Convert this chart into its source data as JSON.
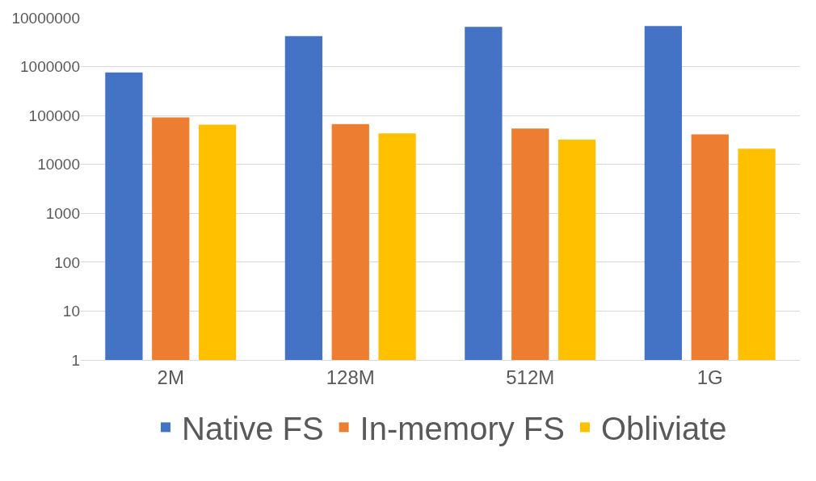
{
  "chart_data": {
    "type": "bar",
    "categories": [
      "2M",
      "128M",
      "512M",
      "1G"
    ],
    "series": [
      {
        "name": "Native FS",
        "color": "#4472c4",
        "values": [
          760000,
          4200000,
          6500000,
          6800000
        ]
      },
      {
        "name": "In-memory FS",
        "color": "#ed7d31",
        "values": [
          91000,
          67000,
          54000,
          41000
        ]
      },
      {
        "name": "Obliviate",
        "color": "#ffc000",
        "values": [
          65000,
          43000,
          32000,
          21000
        ]
      }
    ],
    "log": "y",
    "ylim": [
      1,
      10000000
    ],
    "yticks": [
      1,
      10,
      100,
      1000,
      10000,
      100000,
      1000000,
      10000000
    ],
    "grid": "y",
    "legend": "bottom"
  }
}
